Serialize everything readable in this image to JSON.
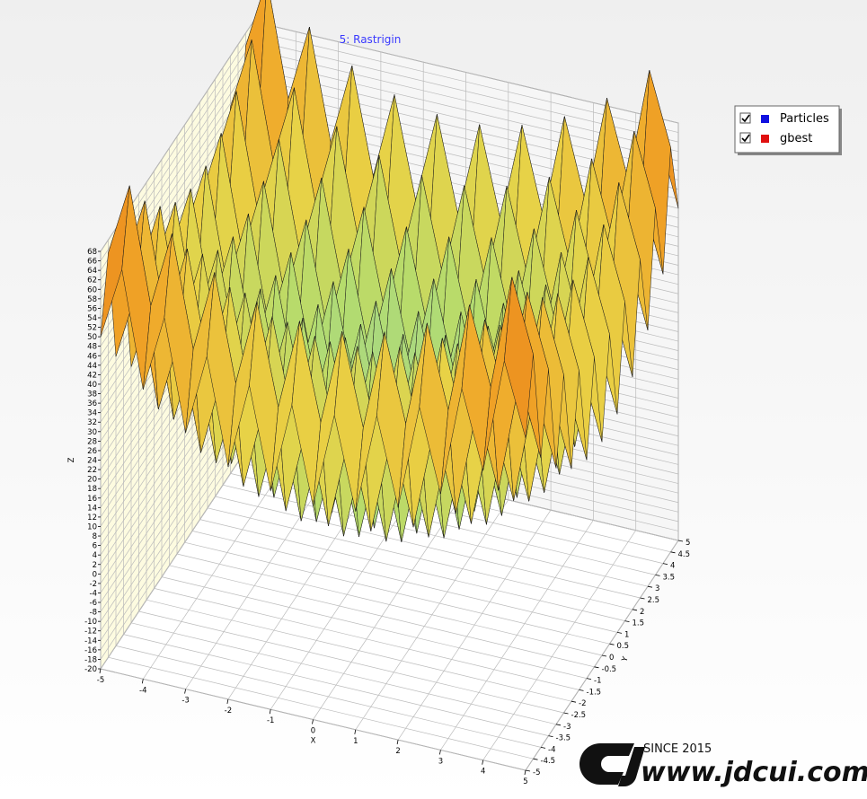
{
  "chart_data": {
    "type": "surface",
    "title": "5: Rastrigin",
    "xlabel": "X",
    "ylabel": "Y",
    "zlabel": "Z",
    "x": [
      -5,
      -4.5,
      -4,
      -3.5,
      -3,
      -2.5,
      -2,
      -1.5,
      -1,
      -0.5,
      0,
      0.5,
      1,
      1.5,
      2,
      2.5,
      3,
      3.5,
      4,
      4.5,
      5
    ],
    "y": [
      -5,
      -4.5,
      -4,
      -3.5,
      -3,
      -2.5,
      -2,
      -1.5,
      -1,
      -0.5,
      0,
      0.5,
      1,
      1.5,
      2,
      2.5,
      3,
      3.5,
      4,
      4.5,
      5
    ],
    "z": [
      [
        50,
        65.25,
        41,
        57.25,
        34,
        51.25,
        29,
        47.25,
        26,
        45.25,
        25,
        45.25,
        26,
        47.25,
        29,
        51.25,
        34,
        57.25,
        41,
        65.25,
        50
      ],
      [
        65.25,
        80.5,
        56.25,
        72.5,
        49.25,
        66.5,
        44.25,
        62.5,
        41.25,
        60.5,
        40.25,
        60.5,
        41.25,
        62.5,
        44.25,
        66.5,
        49.25,
        72.5,
        56.25,
        80.5,
        65.25
      ],
      [
        41,
        56.25,
        32,
        48.25,
        25,
        42.25,
        20,
        38.25,
        17,
        36.25,
        16,
        36.25,
        17,
        38.25,
        20,
        42.25,
        25,
        48.25,
        32,
        56.25,
        41
      ],
      [
        57.25,
        72.5,
        48.25,
        64.5,
        41.25,
        58.5,
        36.25,
        54.5,
        33.25,
        52.5,
        32.25,
        52.5,
        33.25,
        54.5,
        36.25,
        58.5,
        41.25,
        64.5,
        48.25,
        72.5,
        57.25
      ],
      [
        34,
        49.25,
        25,
        41.25,
        18,
        35.25,
        13,
        31.25,
        10,
        29.25,
        9,
        29.25,
        10,
        31.25,
        13,
        35.25,
        18,
        41.25,
        25,
        49.25,
        34
      ],
      [
        51.25,
        66.5,
        42.25,
        58.5,
        35.25,
        52.5,
        30.25,
        48.5,
        27.25,
        46.5,
        26.25,
        46.5,
        27.25,
        48.5,
        30.25,
        52.5,
        35.25,
        58.5,
        42.25,
        66.5,
        51.25
      ],
      [
        29,
        44.25,
        20,
        36.25,
        13,
        30.25,
        8,
        26.25,
        5,
        24.25,
        4,
        24.25,
        5,
        26.25,
        8,
        30.25,
        13,
        36.25,
        20,
        44.25,
        29
      ],
      [
        47.25,
        62.5,
        38.25,
        54.5,
        31.25,
        48.5,
        26.25,
        44.5,
        23.25,
        42.5,
        22.25,
        42.5,
        23.25,
        44.5,
        26.25,
        48.5,
        31.25,
        54.5,
        38.25,
        62.5,
        47.25
      ],
      [
        26,
        41.25,
        17,
        33.25,
        10,
        27.25,
        5,
        23.25,
        2,
        21.25,
        1,
        21.25,
        2,
        23.25,
        5,
        27.25,
        10,
        33.25,
        17,
        41.25,
        26
      ],
      [
        45.25,
        60.5,
        36.25,
        52.5,
        29.25,
        46.5,
        24.25,
        42.5,
        21.25,
        40.5,
        20.25,
        40.5,
        21.25,
        42.5,
        24.25,
        46.5,
        29.25,
        52.5,
        36.25,
        60.5,
        45.25
      ],
      [
        25,
        40.25,
        16,
        32.25,
        9,
        26.25,
        4,
        22.25,
        1,
        20.25,
        0,
        20.25,
        1,
        22.25,
        4,
        26.25,
        9,
        32.25,
        16,
        40.25,
        25
      ],
      [
        45.25,
        60.5,
        36.25,
        52.5,
        29.25,
        46.5,
        24.25,
        42.5,
        21.25,
        40.5,
        20.25,
        40.5,
        21.25,
        42.5,
        24.25,
        46.5,
        29.25,
        52.5,
        36.25,
        60.5,
        45.25
      ],
      [
        26,
        41.25,
        17,
        33.25,
        10,
        27.25,
        5,
        23.25,
        2,
        21.25,
        1,
        21.25,
        2,
        23.25,
        5,
        27.25,
        10,
        33.25,
        17,
        41.25,
        26
      ],
      [
        47.25,
        62.5,
        38.25,
        54.5,
        31.25,
        48.5,
        26.25,
        44.5,
        23.25,
        42.5,
        22.25,
        42.5,
        23.25,
        44.5,
        26.25,
        48.5,
        31.25,
        54.5,
        38.25,
        62.5,
        47.25
      ],
      [
        29,
        44.25,
        20,
        36.25,
        13,
        30.25,
        8,
        26.25,
        5,
        24.25,
        4,
        24.25,
        5,
        26.25,
        8,
        30.25,
        13,
        36.25,
        20,
        44.25,
        29
      ],
      [
        51.25,
        66.5,
        42.25,
        58.5,
        35.25,
        52.5,
        30.25,
        48.5,
        27.25,
        46.5,
        26.25,
        46.5,
        27.25,
        48.5,
        30.25,
        52.5,
        35.25,
        58.5,
        42.25,
        66.5,
        51.25
      ],
      [
        34,
        49.25,
        25,
        41.25,
        18,
        35.25,
        13,
        31.25,
        10,
        29.25,
        9,
        29.25,
        10,
        31.25,
        13,
        35.25,
        18,
        41.25,
        25,
        49.25,
        34
      ],
      [
        57.25,
        72.5,
        48.25,
        64.5,
        41.25,
        58.5,
        36.25,
        54.5,
        33.25,
        52.5,
        32.25,
        52.5,
        33.25,
        54.5,
        36.25,
        58.5,
        41.25,
        64.5,
        48.25,
        72.5,
        57.25
      ],
      [
        41,
        56.25,
        32,
        48.25,
        25,
        42.25,
        20,
        38.25,
        17,
        36.25,
        16,
        36.25,
        17,
        38.25,
        20,
        42.25,
        25,
        48.25,
        32,
        56.25,
        41
      ],
      [
        65.25,
        80.5,
        56.25,
        72.5,
        49.25,
        66.5,
        44.25,
        62.5,
        41.25,
        60.5,
        40.25,
        60.5,
        41.25,
        62.5,
        44.25,
        66.5,
        49.25,
        72.5,
        56.25,
        80.5,
        65.25
      ],
      [
        50,
        65.25,
        41,
        57.25,
        34,
        51.25,
        29,
        47.25,
        26,
        45.25,
        25,
        45.25,
        26,
        47.25,
        29,
        51.25,
        34,
        57.25,
        41,
        65.25,
        50
      ]
    ],
    "xlim": [
      -5,
      5
    ],
    "ylim": [
      -5,
      5
    ],
    "zlim": [
      -20,
      68
    ],
    "xticks": [
      -5,
      -4,
      -3,
      -2,
      -1,
      0,
      1,
      2,
      3,
      4,
      5
    ],
    "yticks": [
      -5,
      -4.5,
      -4,
      -3.5,
      -3,
      -2.5,
      -2,
      -1.5,
      -1,
      -0.5,
      0,
      0.5,
      1,
      1.5,
      2,
      2.5,
      3,
      3.5,
      4,
      4.5,
      5
    ],
    "zticks": [
      -20,
      -18,
      -16,
      -14,
      -12,
      -10,
      -8,
      -6,
      -4,
      -2,
      0,
      2,
      4,
      6,
      8,
      10,
      12,
      14,
      16,
      18,
      20,
      22,
      24,
      26,
      28,
      30,
      32,
      34,
      36,
      38,
      40,
      42,
      44,
      46,
      48,
      50,
      52,
      54,
      56,
      58,
      60,
      62,
      64,
      66,
      68
    ],
    "grid": true,
    "legend": {
      "position": "top-right",
      "items": [
        {
          "name": "Particles",
          "color": "#1010e0"
        },
        {
          "name": "gbest",
          "color": "#e01010"
        }
      ]
    }
  },
  "watermark": {
    "since": "SINCE 2015",
    "site": "www.jdcui.com"
  }
}
